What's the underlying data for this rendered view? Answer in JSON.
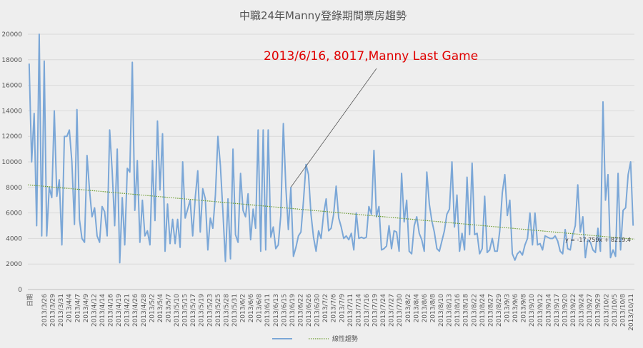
{
  "chart_data": {
    "type": "line",
    "title": "中職24年Manny登錄期間票房趨勢",
    "ylim": [
      0,
      20000
    ],
    "yticks": [
      0,
      2000,
      4000,
      6000,
      8000,
      10000,
      12000,
      14000,
      16000,
      18000,
      20000
    ],
    "x_axis_title": "日期",
    "x_tick_labels": [
      "2013/3/26",
      "2013/3/29",
      "2013/3/31",
      "2013/4/4",
      "2013/4/7",
      "2013/4/9",
      "2013/4/12",
      "2013/4/14",
      "2013/4/16",
      "2013/4/19",
      "2013/4/21",
      "2013/4/26",
      "2013/4/28",
      "2013/5/2",
      "2013/5/4",
      "2013/5/7",
      "2013/5/10",
      "2013/5/15",
      "2013/5/17",
      "2013/5/19",
      "2013/5/23",
      "2013/5/25",
      "2013/5/28",
      "2013/5/31",
      "2013/6/2",
      "2013/6/6",
      "2013/6/8",
      "2013/6/11",
      "2013/6/13",
      "2013/6/15",
      "2013/6/19",
      "2013/6/22",
      "2013/6/26",
      "2013/6/30",
      "2013/7/2",
      "2013/7/6",
      "2013/7/9",
      "2013/7/11",
      "2013/7/14",
      "2013/7/16",
      "2013/7/19",
      "2013/7/24",
      "2013/7/27",
      "2013/7/30",
      "2013/8/2",
      "2013/8/4",
      "2013/8/6",
      "2013/8/8",
      "2013/8/10",
      "2013/8/13",
      "2013/8/16",
      "2013/8/18",
      "2013/8/22",
      "2013/8/24",
      "2013/8/27",
      "2013/8/29",
      "2013/9/3",
      "2013/9/6",
      "2013/9/8",
      "2013/9/10",
      "2013/9/12",
      "2013/9/14",
      "2013/9/17",
      "2013/9/20",
      "2013/9/22",
      "2013/9/24",
      "2013/9/27",
      "2013/9/29",
      "2013/10/2",
      "2013/10/5",
      "2013/10/8",
      "2013/10/11"
    ],
    "series": [
      {
        "name": "",
        "color": "#7ba7d7",
        "values": [
          17700,
          10000,
          13800,
          5000,
          20000,
          4200,
          17900,
          4200,
          8000,
          7200,
          14000,
          7300,
          8600,
          3500,
          12000,
          12000,
          12500,
          10000,
          5100,
          14100,
          5500,
          4000,
          3700,
          10500,
          7800,
          5700,
          6400,
          4200,
          3700,
          6500,
          6100,
          4200,
          12500,
          9300,
          5000,
          11000,
          2100,
          7200,
          3500,
          9500,
          9200,
          17800,
          6200,
          10100,
          3700,
          7000,
          4200,
          4600,
          3500,
          10100,
          5400,
          13200,
          7800,
          12200,
          3000,
          6700,
          3600,
          5500,
          3600,
          5500,
          3300,
          10000,
          5600,
          6300,
          7000,
          4200,
          7200,
          9300,
          4500,
          7900,
          7100,
          3100,
          5600,
          4800,
          7400,
          12000,
          9700,
          6100,
          2200,
          7100,
          2400,
          11000,
          4300,
          3700,
          9100,
          6200,
          5700,
          7500,
          3900,
          6300,
          4800,
          12500,
          3000,
          12500,
          3100,
          12500,
          4100,
          4900,
          3200,
          3500,
          5800,
          13000,
          8000,
          4700,
          8000,
          2600,
          3300,
          4200,
          4500,
          6900,
          9800,
          9000,
          5900,
          4100,
          3000,
          4600,
          4000,
          5900,
          7100,
          4600,
          4800,
          5900,
          8100,
          5600,
          4900,
          4000,
          4200,
          3900,
          4400,
          3100,
          6000,
          4000,
          4100,
          4000,
          4100,
          6500,
          5900,
          10900,
          5700,
          6500,
          3100,
          3200,
          3400,
          5000,
          3200,
          4600,
          4500,
          3000,
          9100,
          5300,
          7000,
          3000,
          2800,
          5000,
          5700,
          4400,
          3900,
          3000,
          9200,
          6700,
          5400,
          4500,
          3200,
          3000,
          3800,
          4600,
          5900,
          6300,
          10000,
          4900,
          7400,
          3000,
          4400,
          3100,
          8800,
          4300,
          9900,
          4300,
          4400,
          2800,
          3200,
          7300,
          2900,
          3100,
          4000,
          3000,
          3000,
          4600,
          7600,
          9000,
          5800,
          7000,
          2800,
          2300,
          2800,
          3000,
          2700,
          3500,
          4000,
          6000,
          3500,
          6000,
          3500,
          3600,
          3100,
          4200,
          4100,
          4000,
          4000,
          4200,
          3800,
          3000,
          2800,
          4700,
          3200,
          3100,
          4300,
          5000,
          8200,
          4500,
          5700,
          2500,
          3900,
          3700,
          3100,
          2900,
          4800,
          3000,
          14700,
          7000,
          9000,
          2500,
          3100,
          2600,
          9100,
          3100,
          6200,
          6400,
          9000,
          10000,
          5000
        ]
      }
    ],
    "trendline": {
      "name": "線性趨勢",
      "slope": -17.759,
      "intercept": 8219.4,
      "color": "#6b9c2e",
      "equation_label": "y = -17.759x + 8219.4"
    },
    "annotation": {
      "text": "2013/6/16, 8017,Manny Last Game",
      "target_index": 104,
      "target_value": 8017
    },
    "legend_position": "bottom",
    "grid": true
  }
}
